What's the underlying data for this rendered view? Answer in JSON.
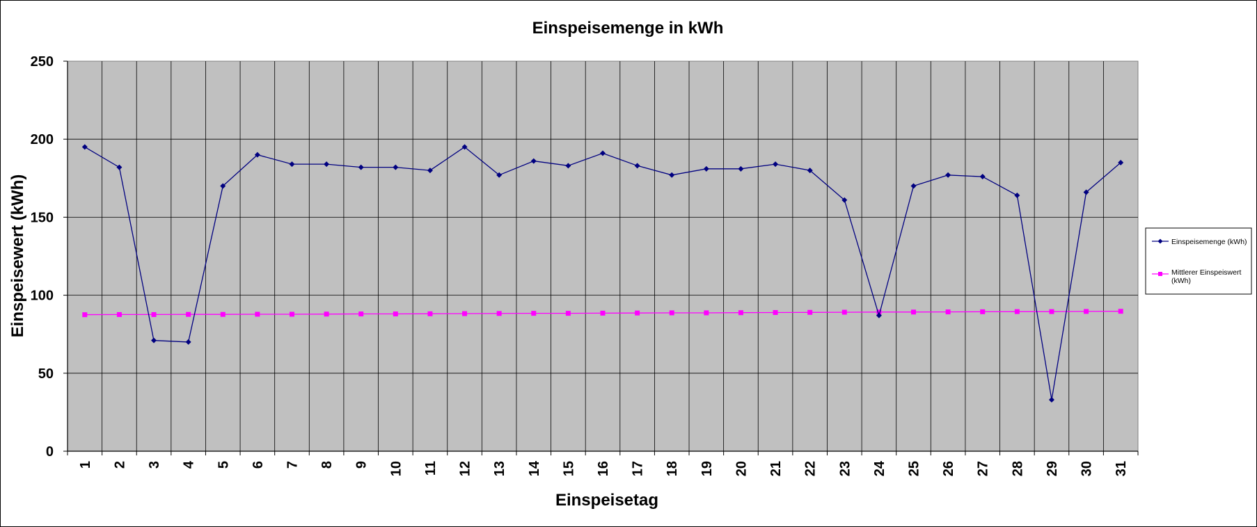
{
  "chart_data": {
    "type": "line",
    "title": "Einspeisemenge in kWh",
    "xlabel": "Einspeisetag",
    "ylabel": "Einspeisewert  (kWh)",
    "categories": [
      "1",
      "2",
      "3",
      "4",
      "5",
      "6",
      "7",
      "8",
      "9",
      "10",
      "11",
      "12",
      "13",
      "14",
      "15",
      "16",
      "17",
      "18",
      "19",
      "20",
      "21",
      "22",
      "23",
      "24",
      "25",
      "26",
      "27",
      "28",
      "29",
      "30",
      "31"
    ],
    "ylim": [
      0,
      250
    ],
    "yticks": [
      "0",
      "50",
      "100",
      "150",
      "200",
      "250"
    ],
    "grid": true,
    "legend_position": "right",
    "series": [
      {
        "name": "Einspeisemenge (kWh)",
        "color": "#000080",
        "marker": "diamond",
        "values": [
          195,
          182,
          71,
          70,
          170,
          190,
          184,
          184,
          182,
          182,
          180,
          195,
          177,
          186,
          183,
          191,
          183,
          177,
          181,
          181,
          184,
          180,
          161,
          87,
          170,
          177,
          176,
          164,
          33,
          166,
          185
        ]
      },
      {
        "name": "Mittlerer Einspeiswert (kWh)",
        "color": "#FF00FF",
        "marker": "square",
        "values": [
          87.5,
          87.6,
          87.6,
          87.7,
          87.7,
          87.8,
          87.8,
          87.9,
          88.0,
          88.0,
          88.1,
          88.2,
          88.3,
          88.4,
          88.4,
          88.5,
          88.6,
          88.7,
          88.7,
          88.8,
          88.9,
          89.0,
          89.1,
          89.2,
          89.2,
          89.3,
          89.4,
          89.5,
          89.5,
          89.6,
          89.7
        ]
      }
    ]
  }
}
